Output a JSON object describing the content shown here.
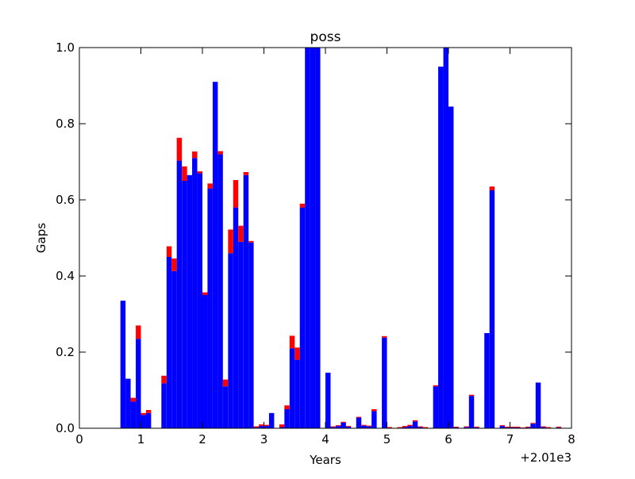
{
  "chart_data": {
    "type": "bar",
    "stacked": true,
    "title": "poss",
    "xlabel": "Years",
    "ylabel": "Gaps",
    "x_offset_text": "+2.01e3",
    "xlim": [
      0,
      8
    ],
    "ylim": [
      0,
      1.0
    ],
    "xticks": [
      "0",
      "1",
      "2",
      "3",
      "4",
      "5",
      "6",
      "7",
      "8"
    ],
    "yticks": [
      "0.0",
      "0.2",
      "0.4",
      "0.6",
      "0.8",
      "1.0"
    ],
    "bin_width": 0.0833,
    "x": [
      0.667,
      0.75,
      0.833,
      0.917,
      1.0,
      1.083,
      1.25,
      1.333,
      1.417,
      1.5,
      1.583,
      1.667,
      1.75,
      1.833,
      1.917,
      2.0,
      2.083,
      2.167,
      2.25,
      2.333,
      2.417,
      2.5,
      2.583,
      2.667,
      2.75,
      2.833,
      2.917,
      3.0,
      3.083,
      3.25,
      3.333,
      3.417,
      3.5,
      3.583,
      3.667,
      3.75,
      3.833,
      4.0,
      4.083,
      4.167,
      4.25,
      4.333,
      4.417,
      4.5,
      4.583,
      4.667,
      4.75,
      4.917,
      5.0,
      5.167,
      5.25,
      5.333,
      5.417,
      5.5,
      5.583,
      5.75,
      5.833,
      5.917,
      6.0,
      6.083,
      6.25,
      6.333,
      6.417,
      6.5,
      6.583,
      6.667,
      6.75,
      6.833,
      6.917,
      7.0,
      7.083,
      7.167,
      7.25,
      7.333,
      7.417,
      7.5,
      7.583,
      7.667,
      7.75
    ],
    "series": [
      {
        "color": "#0000ff",
        "values": [
          0.335,
          0.13,
          0.07,
          0.235,
          0.035,
          0.04,
          0.001,
          0.118,
          0.45,
          0.413,
          0.703,
          0.65,
          0.665,
          0.71,
          0.67,
          0.35,
          0.63,
          0.91,
          0.72,
          0.11,
          0.46,
          0.58,
          0.49,
          0.665,
          0.488,
          0.002,
          0.006,
          0.006,
          0.04,
          0.003,
          0.05,
          0.21,
          0.18,
          0.58,
          1.0,
          1.0,
          1.0,
          0.146,
          0.003,
          0.006,
          0.015,
          0.004,
          0.0,
          0.028,
          0.007,
          0.005,
          0.045,
          0.238,
          0.001,
          0.001,
          0.003,
          0.006,
          0.018,
          0.003,
          0.001,
          0.11,
          0.95,
          1.0,
          0.845,
          0.002,
          0.003,
          0.085,
          0.002,
          0.0,
          0.25,
          0.625,
          0.0,
          0.006,
          0.002,
          0.002,
          0.002,
          0.001,
          0.002,
          0.012,
          0.12,
          0.003,
          0.001,
          0.0,
          0.002
        ]
      },
      {
        "color": "#ff0000",
        "values": [
          0.0,
          0.0,
          0.01,
          0.035,
          0.005,
          0.008,
          0.0,
          0.02,
          0.028,
          0.033,
          0.06,
          0.038,
          0.0,
          0.017,
          0.005,
          0.007,
          0.013,
          0.0,
          0.008,
          0.018,
          0.062,
          0.072,
          0.042,
          0.008,
          0.004,
          0.003,
          0.004,
          0.003,
          0.0,
          0.007,
          0.01,
          0.033,
          0.032,
          0.01,
          0.0,
          0.0,
          0.0,
          0.0,
          0.002,
          0.002,
          0.002,
          0.002,
          0.001,
          0.002,
          0.002,
          0.002,
          0.005,
          0.004,
          0.002,
          0.002,
          0.003,
          0.003,
          0.003,
          0.002,
          0.002,
          0.003,
          0.0,
          0.0,
          0.0,
          0.002,
          0.002,
          0.003,
          0.002,
          0.001,
          0.0,
          0.01,
          0.001,
          0.002,
          0.002,
          0.002,
          0.002,
          0.001,
          0.002,
          0.002,
          0.0,
          0.002,
          0.002,
          0.001,
          0.002
        ]
      }
    ],
    "grid": false,
    "legend": "none"
  }
}
